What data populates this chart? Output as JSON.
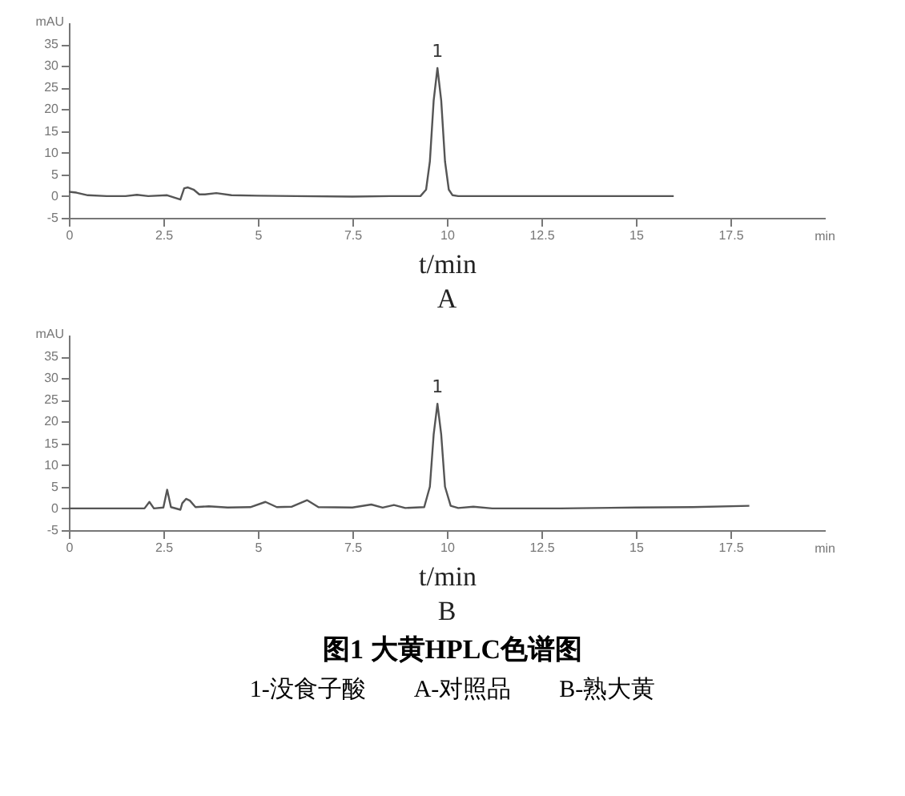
{
  "chart_data": [
    {
      "type": "line",
      "title": "A",
      "xlabel": "t/min",
      "ylabel": "mAU",
      "xlim": [
        0,
        20
      ],
      "ylim": [
        -5,
        40
      ],
      "xticks": [
        0,
        2.5,
        5,
        7.5,
        10,
        12.5,
        15,
        17.5
      ],
      "yticks": [
        -5,
        0,
        5,
        10,
        15,
        20,
        25,
        30,
        35
      ],
      "annotations": [
        {
          "text": "1",
          "x": 9.75,
          "y": 29.5
        },
        "min"
      ],
      "series": [
        {
          "color": "#555555",
          "x": [
            0,
            0.2,
            0.5,
            1.0,
            1.5,
            1.8,
            2.1,
            2.6,
            2.95,
            3.0,
            3.05,
            3.15,
            3.3,
            3.45,
            3.6,
            3.9,
            4.3,
            5.0,
            6.0,
            7.5,
            8.5,
            9.3,
            9.45,
            9.55,
            9.65,
            9.75,
            9.85,
            9.95,
            10.05,
            10.15,
            10.3,
            12,
            14,
            16
          ],
          "values": [
            1,
            0.8,
            0.2,
            0,
            0,
            0.3,
            0,
            0.2,
            -0.8,
            0.5,
            1.8,
            2,
            1.5,
            0.4,
            0.4,
            0.7,
            0.2,
            0.1,
            0,
            -0.1,
            0,
            0,
            1.5,
            8,
            22,
            29.5,
            22,
            8,
            1.5,
            0.2,
            0,
            0,
            0,
            0
          ]
        }
      ]
    },
    {
      "type": "line",
      "title": "B",
      "xlabel": "t/min",
      "ylabel": "mAU",
      "xlim": [
        0,
        20
      ],
      "ylim": [
        -5,
        40
      ],
      "xticks": [
        0,
        2.5,
        5,
        7.5,
        10,
        12.5,
        15,
        17.5
      ],
      "yticks": [
        -5,
        0,
        5,
        10,
        15,
        20,
        25,
        30,
        35
      ],
      "annotations": [
        {
          "text": "1",
          "x": 9.75,
          "y": 24.1
        },
        "min",
        "图1  大黄HPLC色谱图",
        "1-没食子酸        A-对照品        B-熟大黄"
      ],
      "series": [
        {
          "color": "#555555",
          "x": [
            0,
            1,
            2.0,
            2.13,
            2.25,
            2.5,
            2.6,
            2.7,
            2.95,
            3.0,
            3.1,
            3.2,
            3.35,
            3.7,
            4.2,
            4.8,
            5.2,
            5.5,
            5.9,
            6.3,
            6.6,
            7.5,
            8.0,
            8.3,
            8.6,
            8.9,
            9.4,
            9.55,
            9.65,
            9.75,
            9.85,
            9.95,
            10.1,
            10.3,
            10.7,
            11.2,
            13,
            15,
            16.5,
            18.0
          ],
          "values": [
            0,
            0,
            0,
            1.5,
            0,
            0.2,
            4.3,
            0.3,
            -0.3,
            1.2,
            2.2,
            1.8,
            0.3,
            0.5,
            0.2,
            0.3,
            1.5,
            0.3,
            0.4,
            1.9,
            0.3,
            0.2,
            0.9,
            0.2,
            0.8,
            0.1,
            0.3,
            5,
            17,
            24.1,
            17,
            5,
            0.6,
            0.1,
            0.4,
            0,
            0,
            0.2,
            0.3,
            0.6
          ]
        }
      ]
    }
  ]
}
